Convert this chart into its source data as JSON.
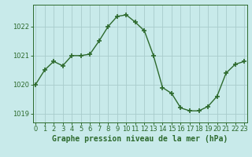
{
  "x": [
    0,
    1,
    2,
    3,
    4,
    5,
    6,
    7,
    8,
    9,
    10,
    11,
    12,
    13,
    14,
    15,
    16,
    17,
    18,
    19,
    20,
    21,
    22,
    23
  ],
  "y": [
    1020.0,
    1020.5,
    1020.8,
    1020.65,
    1021.0,
    1021.0,
    1021.05,
    1021.5,
    1022.0,
    1022.35,
    1022.4,
    1022.15,
    1021.85,
    1021.0,
    1019.9,
    1019.7,
    1019.2,
    1019.1,
    1019.1,
    1019.25,
    1019.6,
    1020.4,
    1020.7,
    1020.8
  ],
  "line_color": "#2d6a2d",
  "marker": "+",
  "marker_size": 4,
  "marker_lw": 1.2,
  "bg_color": "#c8eaea",
  "grid_color": "#a8cccc",
  "xlabel": "Graphe pression niveau de la mer (hPa)",
  "xlabel_fontsize": 7,
  "tick_color": "#2d6a2d",
  "tick_fontsize": 6,
  "ylim": [
    1018.7,
    1022.75
  ],
  "yticks": [
    1019,
    1020,
    1021,
    1022
  ],
  "xticks": [
    0,
    1,
    2,
    3,
    4,
    5,
    6,
    7,
    8,
    9,
    10,
    11,
    12,
    13,
    14,
    15,
    16,
    17,
    18,
    19,
    20,
    21,
    22,
    23
  ],
  "spine_color": "#2d6a2d",
  "line_width": 1.0
}
